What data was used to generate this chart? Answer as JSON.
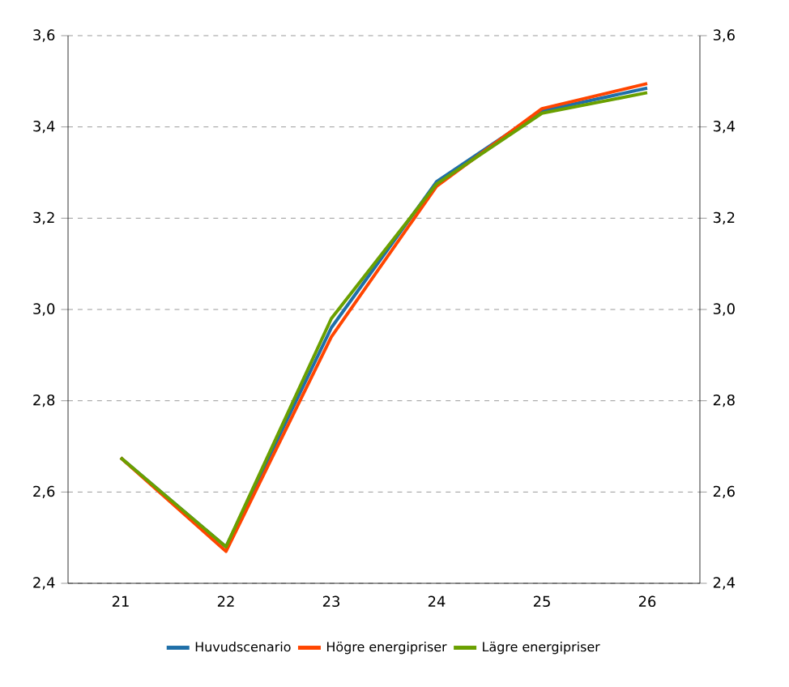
{
  "chart_data": {
    "type": "line",
    "categories": [
      "21",
      "22",
      "23",
      "24",
      "25",
      "26"
    ],
    "series": [
      {
        "name": "Huvudscenario",
        "color": "#1f6fa8",
        "values": [
          2.675,
          2.48,
          2.96,
          3.28,
          3.435,
          3.485
        ]
      },
      {
        "name": "Högre energipriser",
        "color": "#ff4500",
        "values": [
          2.675,
          2.47,
          2.94,
          3.27,
          3.44,
          3.495
        ]
      },
      {
        "name": "Lägre energipriser",
        "color": "#6aa000",
        "values": [
          2.675,
          2.48,
          2.98,
          3.275,
          3.43,
          3.475
        ]
      }
    ],
    "ylim": [
      2.4,
      3.6
    ],
    "yticks": [
      {
        "value": 2.4,
        "label": "2,4"
      },
      {
        "value": 2.6,
        "label": "2,6"
      },
      {
        "value": 2.8,
        "label": "2,8"
      },
      {
        "value": 3.0,
        "label": "3,0"
      },
      {
        "value": 3.2,
        "label": "3,2"
      },
      {
        "value": 3.4,
        "label": "3,4"
      },
      {
        "value": 3.6,
        "label": "3,6"
      }
    ],
    "y2lim": [
      2.4,
      3.6
    ],
    "y2ticks": [
      {
        "value": 2.4,
        "label": "2,4"
      },
      {
        "value": 2.6,
        "label": "2,6"
      },
      {
        "value": 2.8,
        "label": "2,8"
      },
      {
        "value": 3.0,
        "label": "3,0"
      },
      {
        "value": 3.2,
        "label": "3,2"
      },
      {
        "value": 3.4,
        "label": "3,4"
      },
      {
        "value": 3.6,
        "label": "3,6"
      }
    ],
    "grid": "y",
    "legend": "bottom",
    "marker": "none",
    "line_style": "solid"
  }
}
